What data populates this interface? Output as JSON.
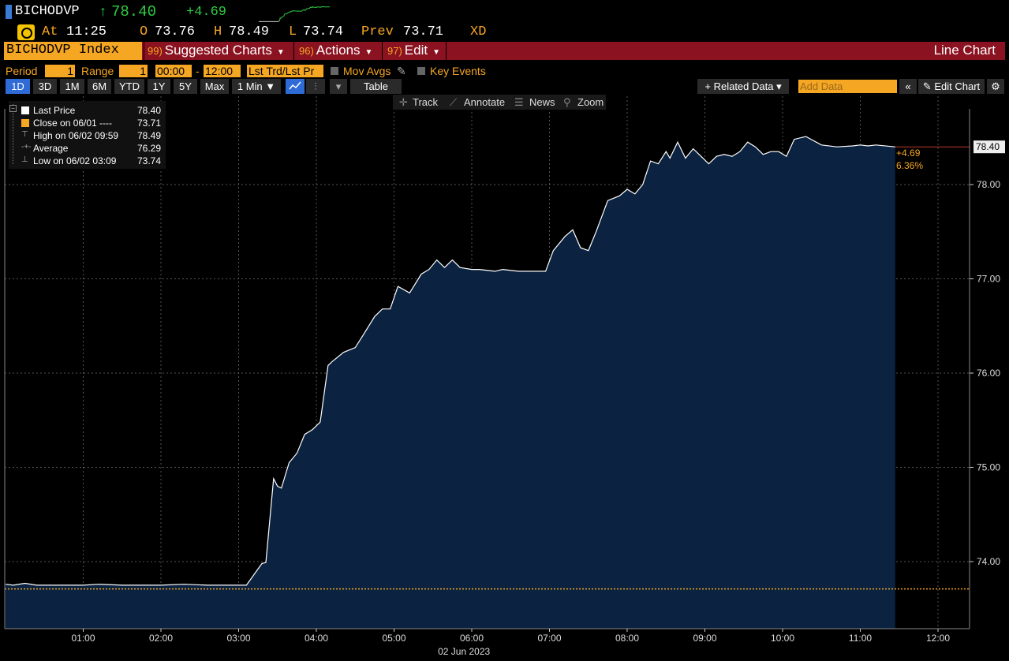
{
  "header": {
    "ticker": "BICHODVP",
    "arrow": "↑",
    "last": "78.40",
    "change": "+4.69",
    "at_label": "At",
    "time": "11:25",
    "open_label": "O",
    "open": "73.76",
    "high_label": "H",
    "high": "78.49",
    "low_label": "L",
    "low": "73.74",
    "prev_label": "Prev",
    "prev": "73.71",
    "exchange": "XD",
    "clock_icon": "clock-icon"
  },
  "menubar": {
    "security": "BICHODVP Index",
    "suggested_num": "99)",
    "suggested": "Suggested Charts",
    "actions_num": "96)",
    "actions": "Actions",
    "edit_num": "97)",
    "edit": "Edit",
    "chart_type": "Line Chart"
  },
  "controls": {
    "period_label": "Period",
    "period_value": "1",
    "range_label": "Range",
    "range_value": "1",
    "time_from": "00:00",
    "time_sep": "-",
    "time_to": "12:00",
    "field": "Lst Trd/Lst Pr",
    "mov_avgs": "Mov Avgs",
    "key_events": "Key Events"
  },
  "ranges": [
    "1D",
    "3D",
    "1M",
    "6M",
    "YTD",
    "1Y",
    "5Y",
    "Max"
  ],
  "active_range": "1D",
  "interval": "1 Min ▼",
  "table_label": "Table",
  "related_data": "+ Related Data ▾",
  "add_data_placeholder": "Add Data",
  "collapse_icon": "«",
  "edit_chart": "Edit Chart",
  "tools": {
    "track": "Track",
    "annotate": "Annotate",
    "news": "News",
    "zoom": "Zoom"
  },
  "legend": [
    {
      "name": "Last Price",
      "value": "78.40",
      "swatch": "#ffffff"
    },
    {
      "name": "Close on 06/01 ----",
      "value": "73.71",
      "swatch": "#f5a623"
    },
    {
      "name": "High on 06/02 09:59",
      "value": "78.49",
      "swatch": "marker"
    },
    {
      "name": "Average",
      "value": "76.29",
      "swatch": "marker"
    },
    {
      "name": "Low on 06/02 03:09",
      "value": "73.74",
      "swatch": "marker"
    }
  ],
  "colors": {
    "price_line": "#ffffff",
    "area_fill": "#0b2240",
    "prev_close": "#f5a623",
    "up": "#2ecc40"
  },
  "chart_data": {
    "type": "area",
    "title": "",
    "xlabel": "02 Jun 2023",
    "ylabel": "",
    "x_ticks": [
      "01:00",
      "02:00",
      "03:00",
      "04:00",
      "05:00",
      "06:00",
      "07:00",
      "08:00",
      "09:00",
      "10:00",
      "11:00",
      "12:00"
    ],
    "xlim_hours": [
      0,
      12.2
    ],
    "y_ticks": [
      "74.00",
      "75.00",
      "76.00",
      "77.00",
      "78.00"
    ],
    "ylim": [
      73.3,
      78.8
    ],
    "grid": true,
    "prev_close": 73.71,
    "last_label": "78.40",
    "change_label": "+4.69",
    "pct_label": "6.36%",
    "series": [
      {
        "name": "Last Price",
        "x": [
          0,
          0.1,
          0.25,
          0.4,
          0.6,
          0.8,
          1.0,
          1.2,
          1.5,
          1.8,
          2.0,
          2.3,
          2.6,
          2.9,
          3.1,
          3.3,
          3.35,
          3.45,
          3.5,
          3.55,
          3.65,
          3.75,
          3.85,
          3.95,
          4.05,
          4.15,
          4.2,
          4.35,
          4.5,
          4.6,
          4.75,
          4.85,
          4.95,
          5.05,
          5.2,
          5.35,
          5.45,
          5.55,
          5.65,
          5.75,
          5.85,
          6.0,
          6.1,
          6.3,
          6.4,
          6.6,
          6.8,
          6.95,
          7.05,
          7.2,
          7.3,
          7.4,
          7.5,
          7.6,
          7.75,
          7.9,
          8.0,
          8.1,
          8.2,
          8.3,
          8.4,
          8.5,
          8.55,
          8.65,
          8.75,
          8.85,
          8.95,
          9.05,
          9.15,
          9.25,
          9.35,
          9.45,
          9.55,
          9.65,
          9.75,
          9.85,
          9.95,
          10.05,
          10.15,
          10.3,
          10.5,
          10.7,
          10.9,
          11.0,
          11.1,
          11.2,
          11.45
        ],
        "y": [
          73.76,
          73.75,
          73.77,
          73.75,
          73.75,
          73.75,
          73.75,
          73.76,
          73.75,
          73.75,
          73.75,
          73.76,
          73.75,
          73.75,
          73.75,
          73.98,
          73.99,
          74.88,
          74.8,
          74.78,
          75.05,
          75.15,
          75.35,
          75.4,
          75.48,
          76.08,
          76.12,
          76.22,
          76.27,
          76.4,
          76.6,
          76.68,
          76.68,
          76.92,
          76.85,
          77.05,
          77.1,
          77.2,
          77.12,
          77.2,
          77.12,
          77.1,
          77.1,
          77.08,
          77.1,
          77.08,
          77.08,
          77.08,
          77.3,
          77.45,
          77.52,
          77.33,
          77.3,
          77.5,
          77.83,
          77.88,
          77.95,
          77.9,
          78.0,
          78.25,
          78.22,
          78.35,
          78.28,
          78.45,
          78.28,
          78.38,
          78.3,
          78.22,
          78.3,
          78.32,
          78.3,
          78.35,
          78.45,
          78.4,
          78.32,
          78.35,
          78.35,
          78.3,
          78.48,
          78.51,
          78.42,
          78.4,
          78.41,
          78.42,
          78.41,
          78.42,
          78.4
        ]
      }
    ]
  }
}
